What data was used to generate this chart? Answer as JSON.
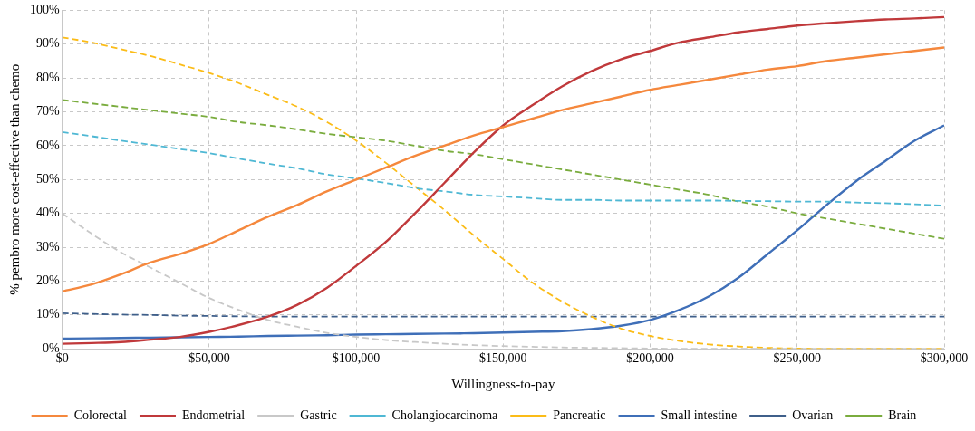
{
  "chart_data": {
    "type": "line",
    "xlabel": "Willingness-to-pay",
    "ylabel": "% pembro more cost-effective than chemo",
    "x": [
      0,
      10000,
      20000,
      30000,
      40000,
      50000,
      60000,
      70000,
      80000,
      90000,
      100000,
      110000,
      120000,
      130000,
      140000,
      150000,
      160000,
      170000,
      180000,
      190000,
      200000,
      210000,
      220000,
      230000,
      240000,
      250000,
      260000,
      270000,
      280000,
      290000,
      300000
    ],
    "series": [
      {
        "name": "Colorectal",
        "color": "#f5883d",
        "line_style": "solid",
        "values": [
          17,
          19,
          22,
          25.5,
          28,
          31,
          35,
          39,
          42.5,
          46.5,
          50,
          53.5,
          57,
          60,
          63,
          65.5,
          68,
          70.5,
          72.5,
          74.5,
          76.5,
          78,
          79.5,
          81,
          82.5,
          83.5,
          85,
          86,
          87,
          88,
          89
        ]
      },
      {
        "name": "Endometrial",
        "color": "#c0393b",
        "line_style": "solid",
        "values": [
          1.5,
          1.7,
          2,
          2.7,
          3.5,
          5,
          7,
          9.5,
          13,
          18,
          24.5,
          31.5,
          40,
          49,
          58,
          66,
          72,
          77.5,
          82,
          85.5,
          88,
          90.5,
          92,
          93.5,
          94.5,
          95.5,
          96.2,
          96.8,
          97.3,
          97.6,
          98
        ]
      },
      {
        "name": "Gastric",
        "color": "#c8c8c8",
        "line_style": "dashed",
        "values": [
          40,
          34,
          28.5,
          24,
          19.5,
          15,
          11.5,
          8.5,
          6.5,
          4.7,
          3.5,
          2.6,
          2,
          1.5,
          1.1,
          0.8,
          0.6,
          0.4,
          0.3,
          0.2,
          0.1,
          0,
          0,
          0,
          0,
          0,
          0,
          0,
          0,
          0,
          0
        ]
      },
      {
        "name": "Cholangiocarcinoma",
        "color": "#4fb8d4",
        "line_style": "dashed",
        "values": [
          64,
          62.8,
          61.5,
          60.3,
          59,
          57.8,
          56.2,
          54.7,
          53.3,
          51.5,
          50.3,
          49,
          47.5,
          46.5,
          45.5,
          45,
          44.5,
          44,
          44,
          43.8,
          43.8,
          43.8,
          43.8,
          43.7,
          43.6,
          43.5,
          43.5,
          43.2,
          43,
          42.7,
          42.3
        ]
      },
      {
        "name": "Pancreatic",
        "color": "#fbbc18",
        "line_style": "dashed",
        "values": [
          92,
          90.5,
          88.5,
          86.5,
          84,
          81.5,
          78.5,
          75,
          71.5,
          67,
          61.5,
          55,
          48,
          41,
          33.5,
          26.5,
          19.5,
          14,
          9.5,
          6,
          3.8,
          2.3,
          1.3,
          0.7,
          0.3,
          0.1,
          0,
          0,
          0,
          0,
          0
        ]
      },
      {
        "name": "Small intestine",
        "color": "#3f6fb8",
        "line_style": "solid",
        "values": [
          3,
          3.1,
          3.2,
          3.3,
          3.4,
          3.5,
          3.6,
          3.8,
          3.9,
          4,
          4.2,
          4.3,
          4.4,
          4.5,
          4.6,
          4.8,
          5,
          5.2,
          5.8,
          6.8,
          8.5,
          11.5,
          15.5,
          21,
          28,
          35,
          42.5,
          49.5,
          55.5,
          61.5,
          66
        ]
      },
      {
        "name": "Ovarian",
        "color": "#3f5f8a",
        "line_style": "dashed",
        "values": [
          10.5,
          10.3,
          10.1,
          10,
          9.8,
          9.7,
          9.6,
          9.5,
          9.5,
          9.5,
          9.5,
          9.5,
          9.5,
          9.5,
          9.5,
          9.5,
          9.5,
          9.5,
          9.5,
          9.5,
          9.5,
          9.5,
          9.5,
          9.5,
          9.5,
          9.5,
          9.5,
          9.5,
          9.5,
          9.5,
          9.5
        ]
      },
      {
        "name": "Brain",
        "color": "#7aac3e",
        "line_style": "dashed",
        "values": [
          73.5,
          72.5,
          71.5,
          70.5,
          69.5,
          68.5,
          67,
          66,
          64.8,
          63.5,
          62.5,
          61.5,
          60,
          58.5,
          57.5,
          56,
          54.5,
          53,
          51.5,
          50,
          48.5,
          47,
          45.5,
          43.5,
          42,
          40,
          38.5,
          37,
          35.5,
          34,
          32.5
        ]
      }
    ],
    "xlim": [
      0,
      300000
    ],
    "xticks": [
      {
        "value": 0,
        "label": "$0"
      },
      {
        "value": 50000,
        "label": "$50,000"
      },
      {
        "value": 100000,
        "label": "$100,000"
      },
      {
        "value": 150000,
        "label": "$150,000"
      },
      {
        "value": 200000,
        "label": "$200,000"
      },
      {
        "value": 250000,
        "label": "$250,000"
      },
      {
        "value": 300000,
        "label": "$300,000"
      }
    ],
    "ylim": [
      0,
      100
    ],
    "yticks": [
      {
        "value": 0,
        "label": "0%"
      },
      {
        "value": 10,
        "label": "10%"
      },
      {
        "value": 20,
        "label": "20%"
      },
      {
        "value": 30,
        "label": "30%"
      },
      {
        "value": 40,
        "label": "40%"
      },
      {
        "value": 50,
        "label": "50%"
      },
      {
        "value": 60,
        "label": "60%"
      },
      {
        "value": 70,
        "label": "70%"
      },
      {
        "value": 80,
        "label": "80%"
      },
      {
        "value": 90,
        "label": "90%"
      },
      {
        "value": 100,
        "label": "100%"
      }
    ],
    "grid": true,
    "legend": "bottom",
    "marker": "none"
  }
}
